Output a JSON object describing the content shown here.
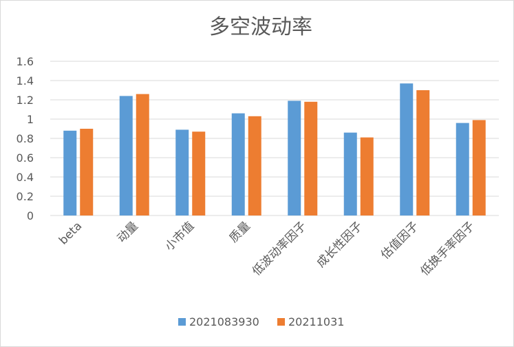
{
  "chart_data": {
    "type": "bar",
    "title": "多空波动率",
    "xlabel": "",
    "ylabel": "",
    "categories": [
      "beta",
      "动量",
      "小市值",
      "质量",
      "低波动率因子",
      "成长性因子",
      "估值因子",
      "低换手率因子"
    ],
    "series": [
      {
        "name": "2021083930",
        "color": "#5b9bd5",
        "values": [
          0.88,
          1.24,
          0.89,
          1.06,
          1.19,
          0.86,
          1.37,
          0.96
        ]
      },
      {
        "name": "20211031",
        "color": "#ed7d31",
        "values": [
          0.9,
          1.26,
          0.87,
          1.03,
          1.18,
          0.81,
          1.3,
          0.99
        ]
      }
    ],
    "ylim": [
      0,
      1.6
    ],
    "yticks": [
      "0",
      "0.2",
      "0.4",
      "0.6",
      "0.8",
      "1",
      "1.2",
      "1.4",
      "1.6"
    ],
    "grid": true,
    "legend_position": "bottom",
    "gridline_color": "#d9d9d9"
  }
}
